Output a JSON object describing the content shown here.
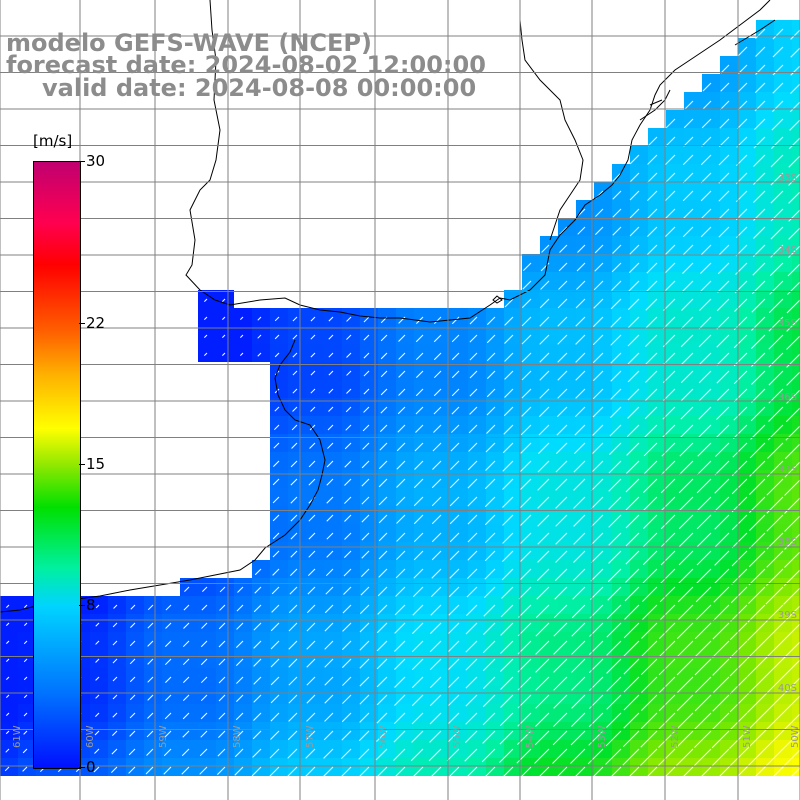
{
  "title": {
    "line1": "modelo GEFS-WAVE (NCEP)",
    "line2": "forecast date: 2024-08-02 12:00:00",
    "line3": "valid date: 2024-08-08 00:00:00"
  },
  "colorbar": {
    "unit": "[m/s]",
    "ticks": [
      "30",
      "22",
      "15",
      "8",
      "0"
    ],
    "tick_values": [
      30,
      22,
      15,
      8,
      0
    ],
    "colors": {
      "low": "#0010ff",
      "mid_low": "#00d4ff",
      "mid": "#00e000",
      "mid_high": "#ffff00",
      "high": "#ff0000",
      "top": "#c00070"
    }
  },
  "lat_labels": [
    "33S",
    "34S",
    "35S",
    "36S",
    "37S",
    "38S",
    "39S",
    "40S"
  ],
  "lon_labels": [
    "61W",
    "60W",
    "59W",
    "58W",
    "57W",
    "56W",
    "55W",
    "54W",
    "53W",
    "52W",
    "51W",
    "50W"
  ],
  "map": {
    "land_color": "#ffffff",
    "grid_color": "#808080",
    "coastline_color": "#000000",
    "arrow_color": "#ffffff",
    "field": "wind speed"
  }
}
